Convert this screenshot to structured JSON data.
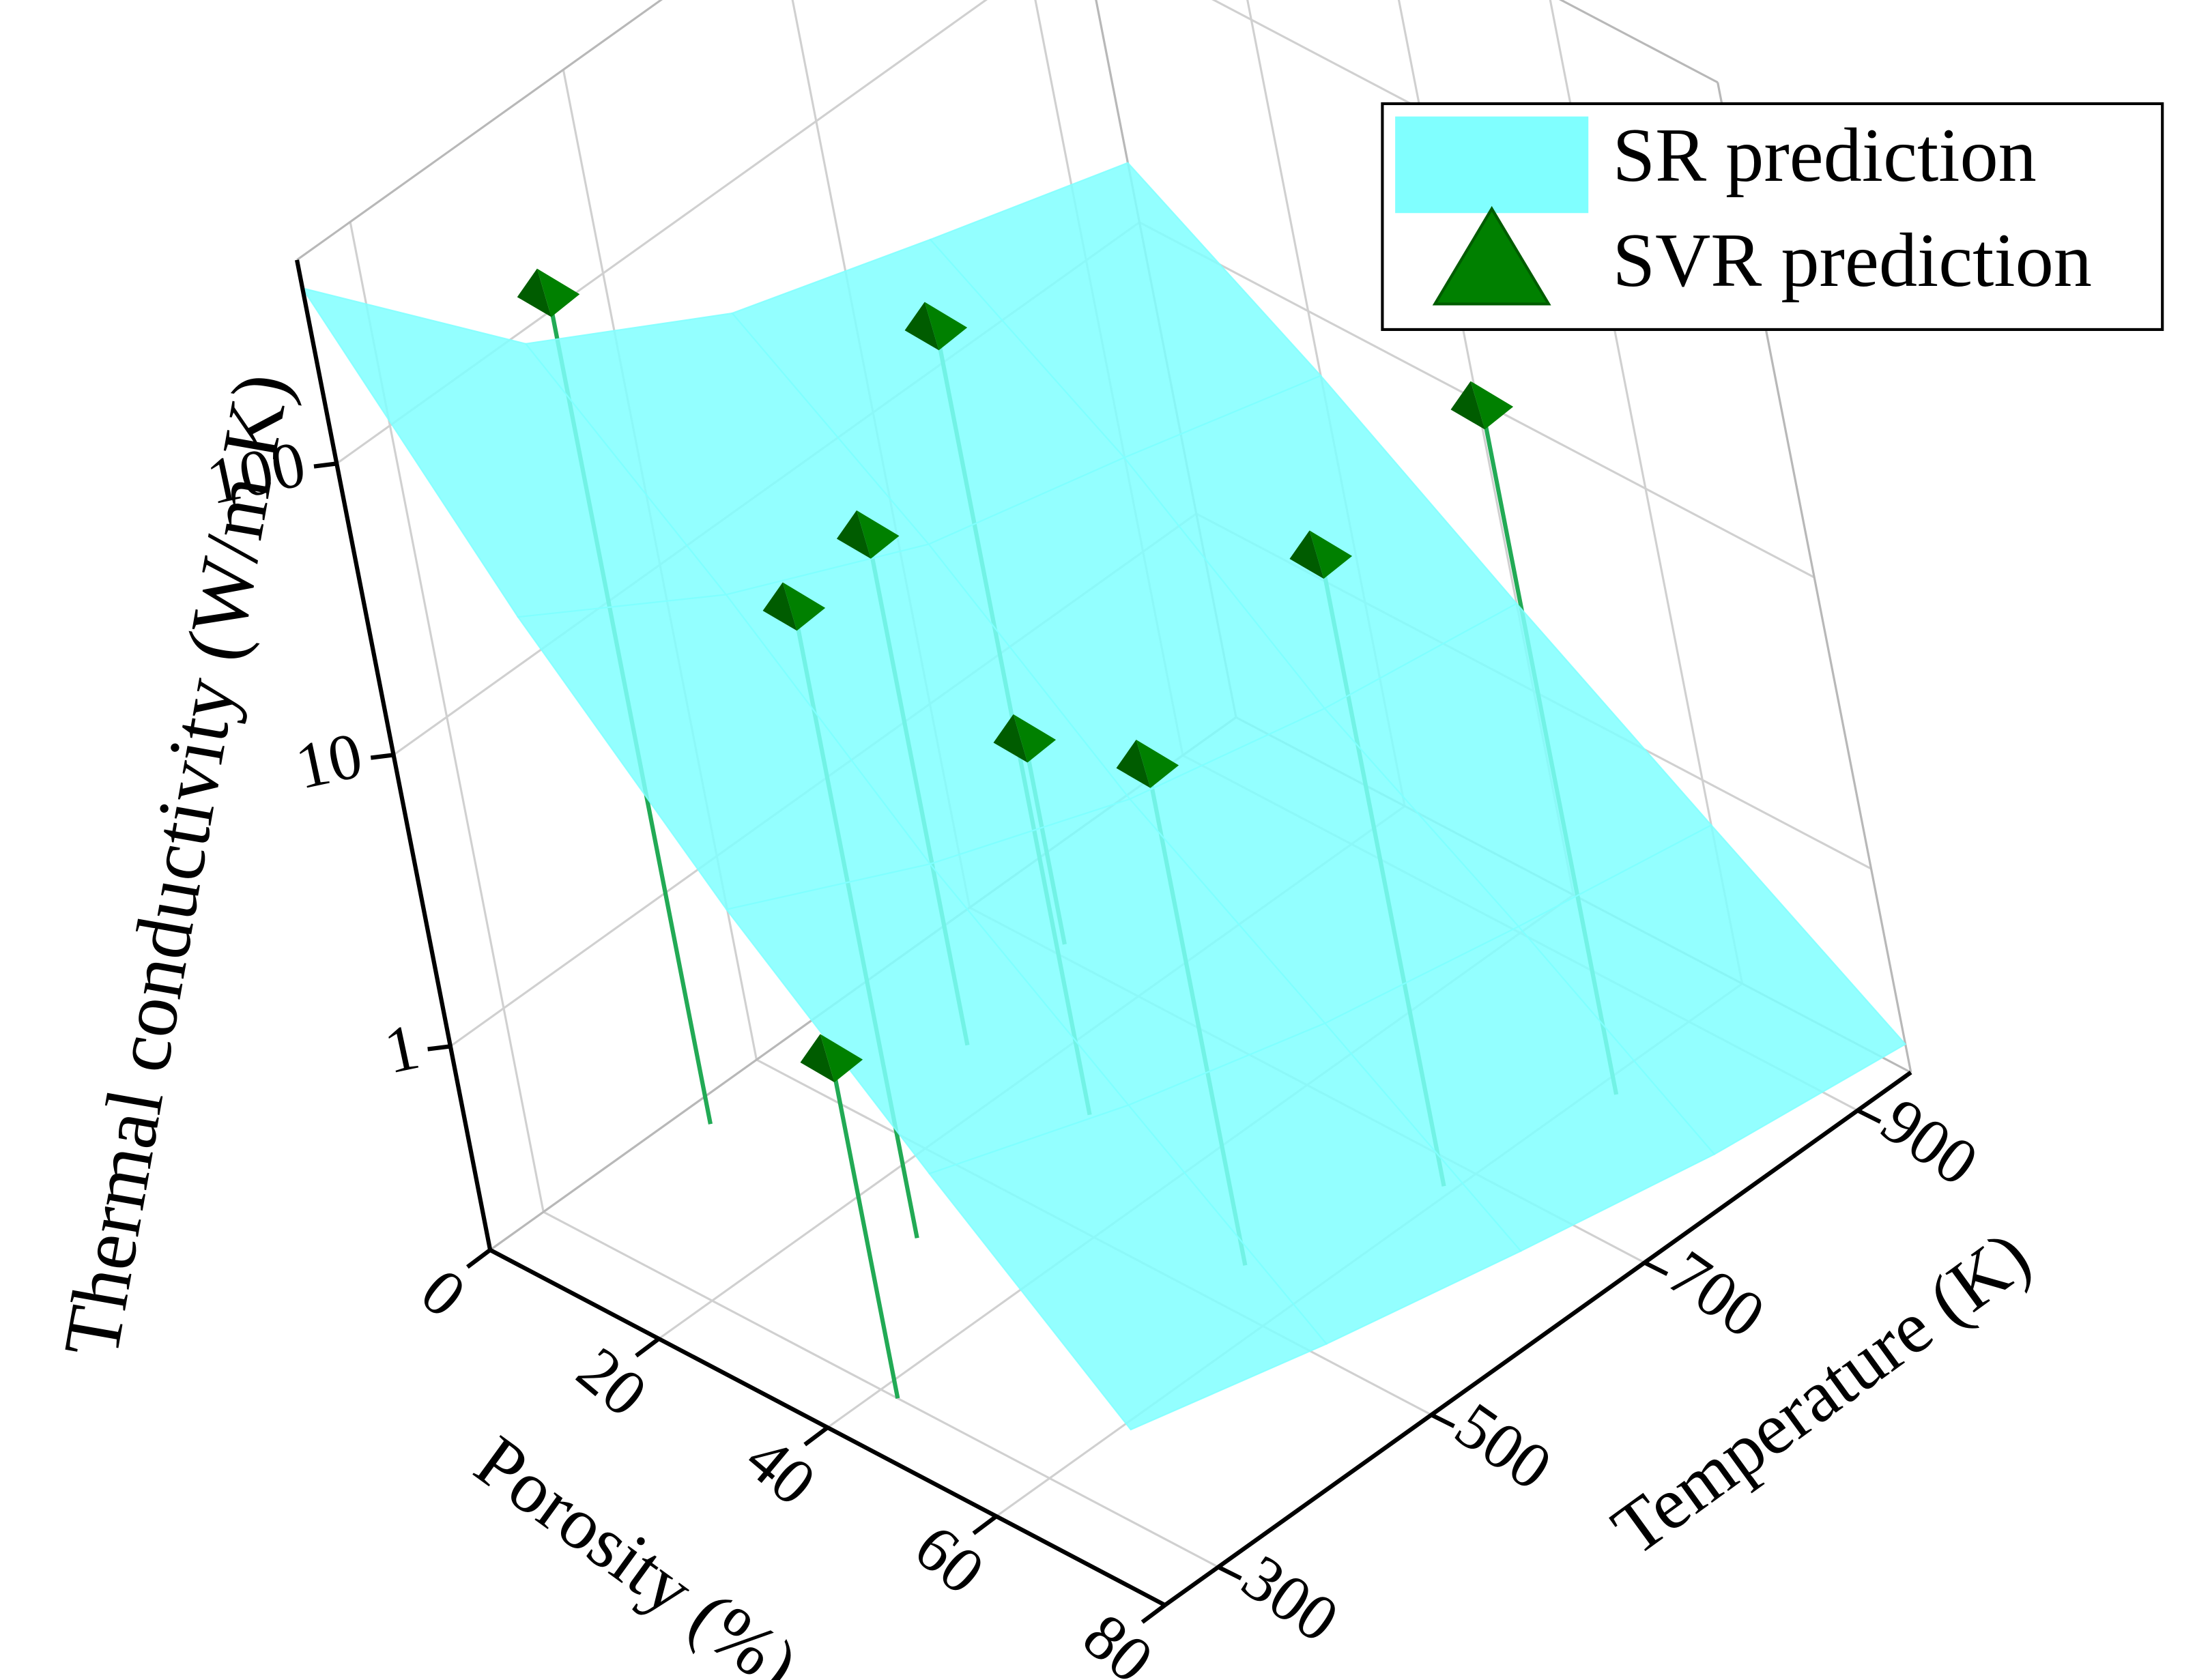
{
  "chart_data": {
    "type": "scatter3d",
    "xlabel": "Porosity (%)",
    "ylabel": "Temperature (K)",
    "zlabel": "Thermal conductivity (W/m K)",
    "xlim": [
      0,
      80
    ],
    "xticks": [
      0,
      20,
      40,
      60,
      80
    ],
    "ylim": [
      250,
      950
    ],
    "yticks": [
      300,
      500,
      700,
      900
    ],
    "zlim": [
      0.2,
      500
    ],
    "zticks": [
      1,
      10,
      100
    ],
    "zscale": "log",
    "grid": true,
    "legend": "upper right",
    "series": [
      {
        "name": "SR prediction",
        "type": "surface",
        "color": "#80ffff",
        "x": [
          0,
          20,
          40,
          60,
          80
        ],
        "y": [
          250,
          425,
          600,
          775,
          950
        ],
        "z": [
          [
            400,
            90,
            40,
            25,
            16
          ],
          [
            60,
            25,
            13,
            9,
            6
          ],
          [
            12,
            6,
            3.5,
            2.5,
            2
          ],
          [
            3,
            1.8,
            1.2,
            0.9,
            0.7
          ],
          [
            0.8,
            0.55,
            0.4,
            0.3,
            0.25
          ]
        ]
      },
      {
        "name": "SVR prediction",
        "type": "scatter",
        "color": "#008000",
        "x": [
          3,
          28,
          59,
          62,
          13,
          28,
          10,
          53,
          42
        ],
        "y": [
          433,
          591,
          678,
          816,
          595,
          429,
          710,
          539,
          300
        ],
        "z": [
          126,
          90,
          26,
          41,
          10,
          26,
          0.9,
          9.3,
          2.6
        ]
      }
    ]
  }
}
